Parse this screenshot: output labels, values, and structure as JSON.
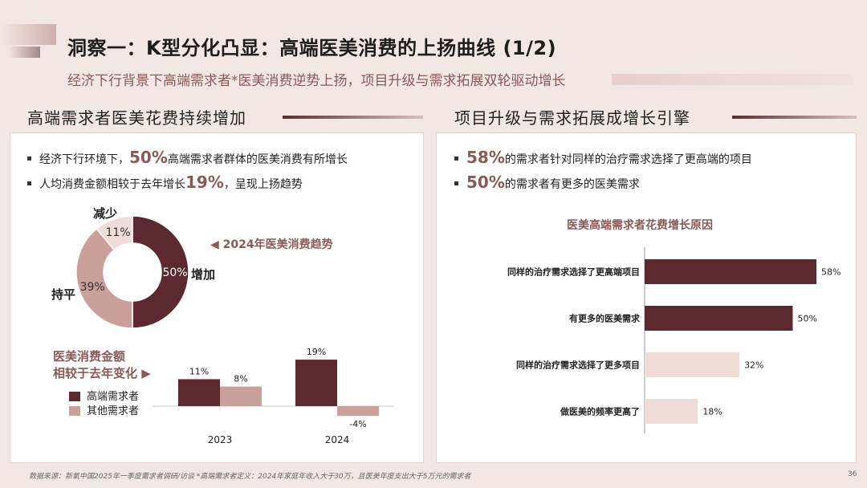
{
  "header": {
    "title": "洞察一：K型分化凸显：高端医美消费的上扬曲线 (1/2)",
    "subtitle": "经济下行背景下高端需求者*医美消费逆势上扬，项目升级与需求拓展双轮驱动增长"
  },
  "left_panel": {
    "heading": "高端需求者医美花费持续增加",
    "bullet1": {
      "pre": "经济下行环境下，",
      "big": "50%",
      "post": "高端需求者群体的医美消费有所增长"
    },
    "bullet2": {
      "pre": "人均消费金额相较于去年增长",
      "big": "19%",
      "post": "，呈现上扬趋势"
    },
    "donut_callout": "◀ 2024年医美消费趋势",
    "bar_legend_title_1": "医美消费金额",
    "bar_legend_title_2": "相较于去年变化 ▶"
  },
  "right_panel": {
    "heading": "项目升级与需求拓展成增长引擎",
    "bullet1": {
      "big": "58%",
      "post": "的需求者针对同样的治疗需求选择了更高端的项目"
    },
    "bullet2": {
      "big": "50%",
      "post": "的需求者有更多的医美需求"
    }
  },
  "footer": {
    "source": "数据来源：新氧中国2025年一季度需求者调研/访谈  *高端需求者定义：2024年家庭年收入大于30万，且医美年度支出大于5万元的需求者",
    "page": "36"
  },
  "colors": {
    "dark": "#5c2a2e",
    "mid": "#c9a09a",
    "light": "#f0dcd6",
    "accent": "#8a5a56"
  },
  "chart_data": [
    {
      "type": "pie",
      "variant": "donut",
      "categories": [
        "增加",
        "持平",
        "减少"
      ],
      "values": [
        50,
        39,
        11
      ],
      "labels": [
        "50%",
        "39%",
        "11%"
      ],
      "colors": [
        "#5c2a2e",
        "#c9a09a",
        "#f0dcd6"
      ]
    },
    {
      "type": "bar",
      "categories": [
        "2023",
        "2024"
      ],
      "series": [
        {
          "name": "高端需求者",
          "values": [
            11,
            19
          ],
          "labels": [
            "11%",
            "19%"
          ],
          "color": "#5c2a2e"
        },
        {
          "name": "其他需求者",
          "values": [
            8,
            -4
          ],
          "labels": [
            "8%",
            "-4%"
          ],
          "color": "#c9a09a"
        }
      ]
    },
    {
      "type": "bar",
      "orientation": "horizontal",
      "title": "医美高端需求者花费增长原因",
      "categories": [
        "同样的治疗需求选择了更高端项目",
        "有更多的医美需求",
        "同样的治疗需求选择了更多项目",
        "做医美的频率更高了"
      ],
      "values": [
        58,
        50,
        32,
        18
      ],
      "labels": [
        "58%",
        "50%",
        "32%",
        "18%"
      ],
      "colors": [
        "#5c2a2e",
        "#5c2a2e",
        "#f0dcd6",
        "#f0dcd6"
      ],
      "xlim": [
        0,
        60
      ]
    }
  ]
}
